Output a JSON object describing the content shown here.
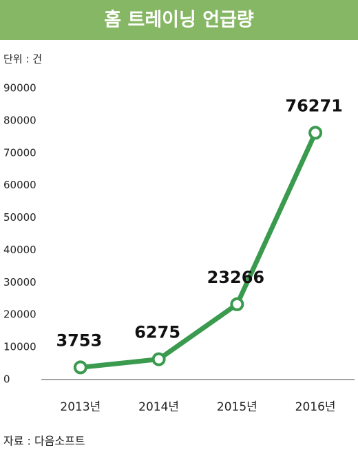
{
  "chart_data": {
    "type": "line",
    "title": "홈 트레이닝 언급량",
    "unit_label": "단위 : 건",
    "source": "자료 : 다음소프트",
    "categories": [
      "2013년",
      "2014년",
      "2015년",
      "2016년"
    ],
    "series": [
      {
        "name": "언급량",
        "color": "#3a9a4e",
        "values": [
          3753,
          6275,
          23266,
          76271
        ]
      }
    ],
    "ylim": [
      0,
      90000
    ],
    "yticks": [
      0,
      10000,
      20000,
      30000,
      40000,
      50000,
      60000,
      70000,
      80000,
      90000
    ],
    "grid": false,
    "title_color": "#86b765"
  }
}
